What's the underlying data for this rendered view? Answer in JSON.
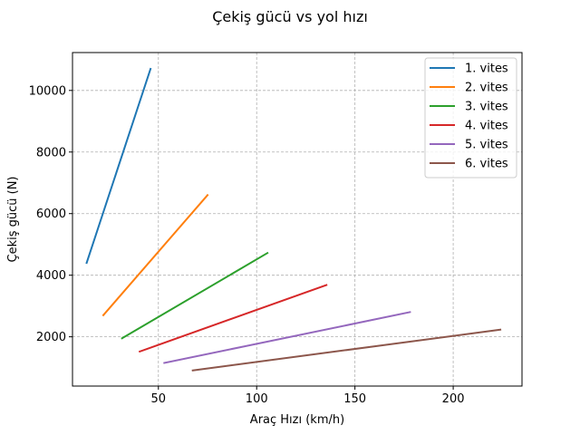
{
  "chart_data": {
    "type": "line",
    "title": "Çekiş gücü vs yol hızı",
    "xlabel": "Araç Hızı (km/h)",
    "ylabel": "Çekiş gücü (N)",
    "xlim": [
      6.3,
      235
    ],
    "ylim": [
      400,
      11230
    ],
    "xticks": [
      50,
      100,
      150,
      200
    ],
    "yticks": [
      2000,
      4000,
      6000,
      8000,
      10000
    ],
    "grid": true,
    "legend_position": "top-right",
    "series": [
      {
        "name": "1. vites",
        "color": "#1f77b4",
        "points": [
          [
            13.5,
            4400
          ],
          [
            46.0,
            10700
          ]
        ]
      },
      {
        "name": "2. vites",
        "color": "#ff7f0e",
        "points": [
          [
            22.0,
            2700
          ],
          [
            75.0,
            6600
          ]
        ]
      },
      {
        "name": "3. vites",
        "color": "#2ca02c",
        "points": [
          [
            31.5,
            1950
          ],
          [
            105.5,
            4720
          ]
        ]
      },
      {
        "name": "4. vites",
        "color": "#d62728",
        "points": [
          [
            40.5,
            1520
          ],
          [
            135.5,
            3680
          ]
        ]
      },
      {
        "name": "5. vites",
        "color": "#9467bd",
        "points": [
          [
            53.0,
            1150
          ],
          [
            178.0,
            2800
          ]
        ]
      },
      {
        "name": "6. vites",
        "color": "#8c564b",
        "points": [
          [
            67.5,
            910
          ],
          [
            224.0,
            2230
          ]
        ]
      }
    ]
  }
}
